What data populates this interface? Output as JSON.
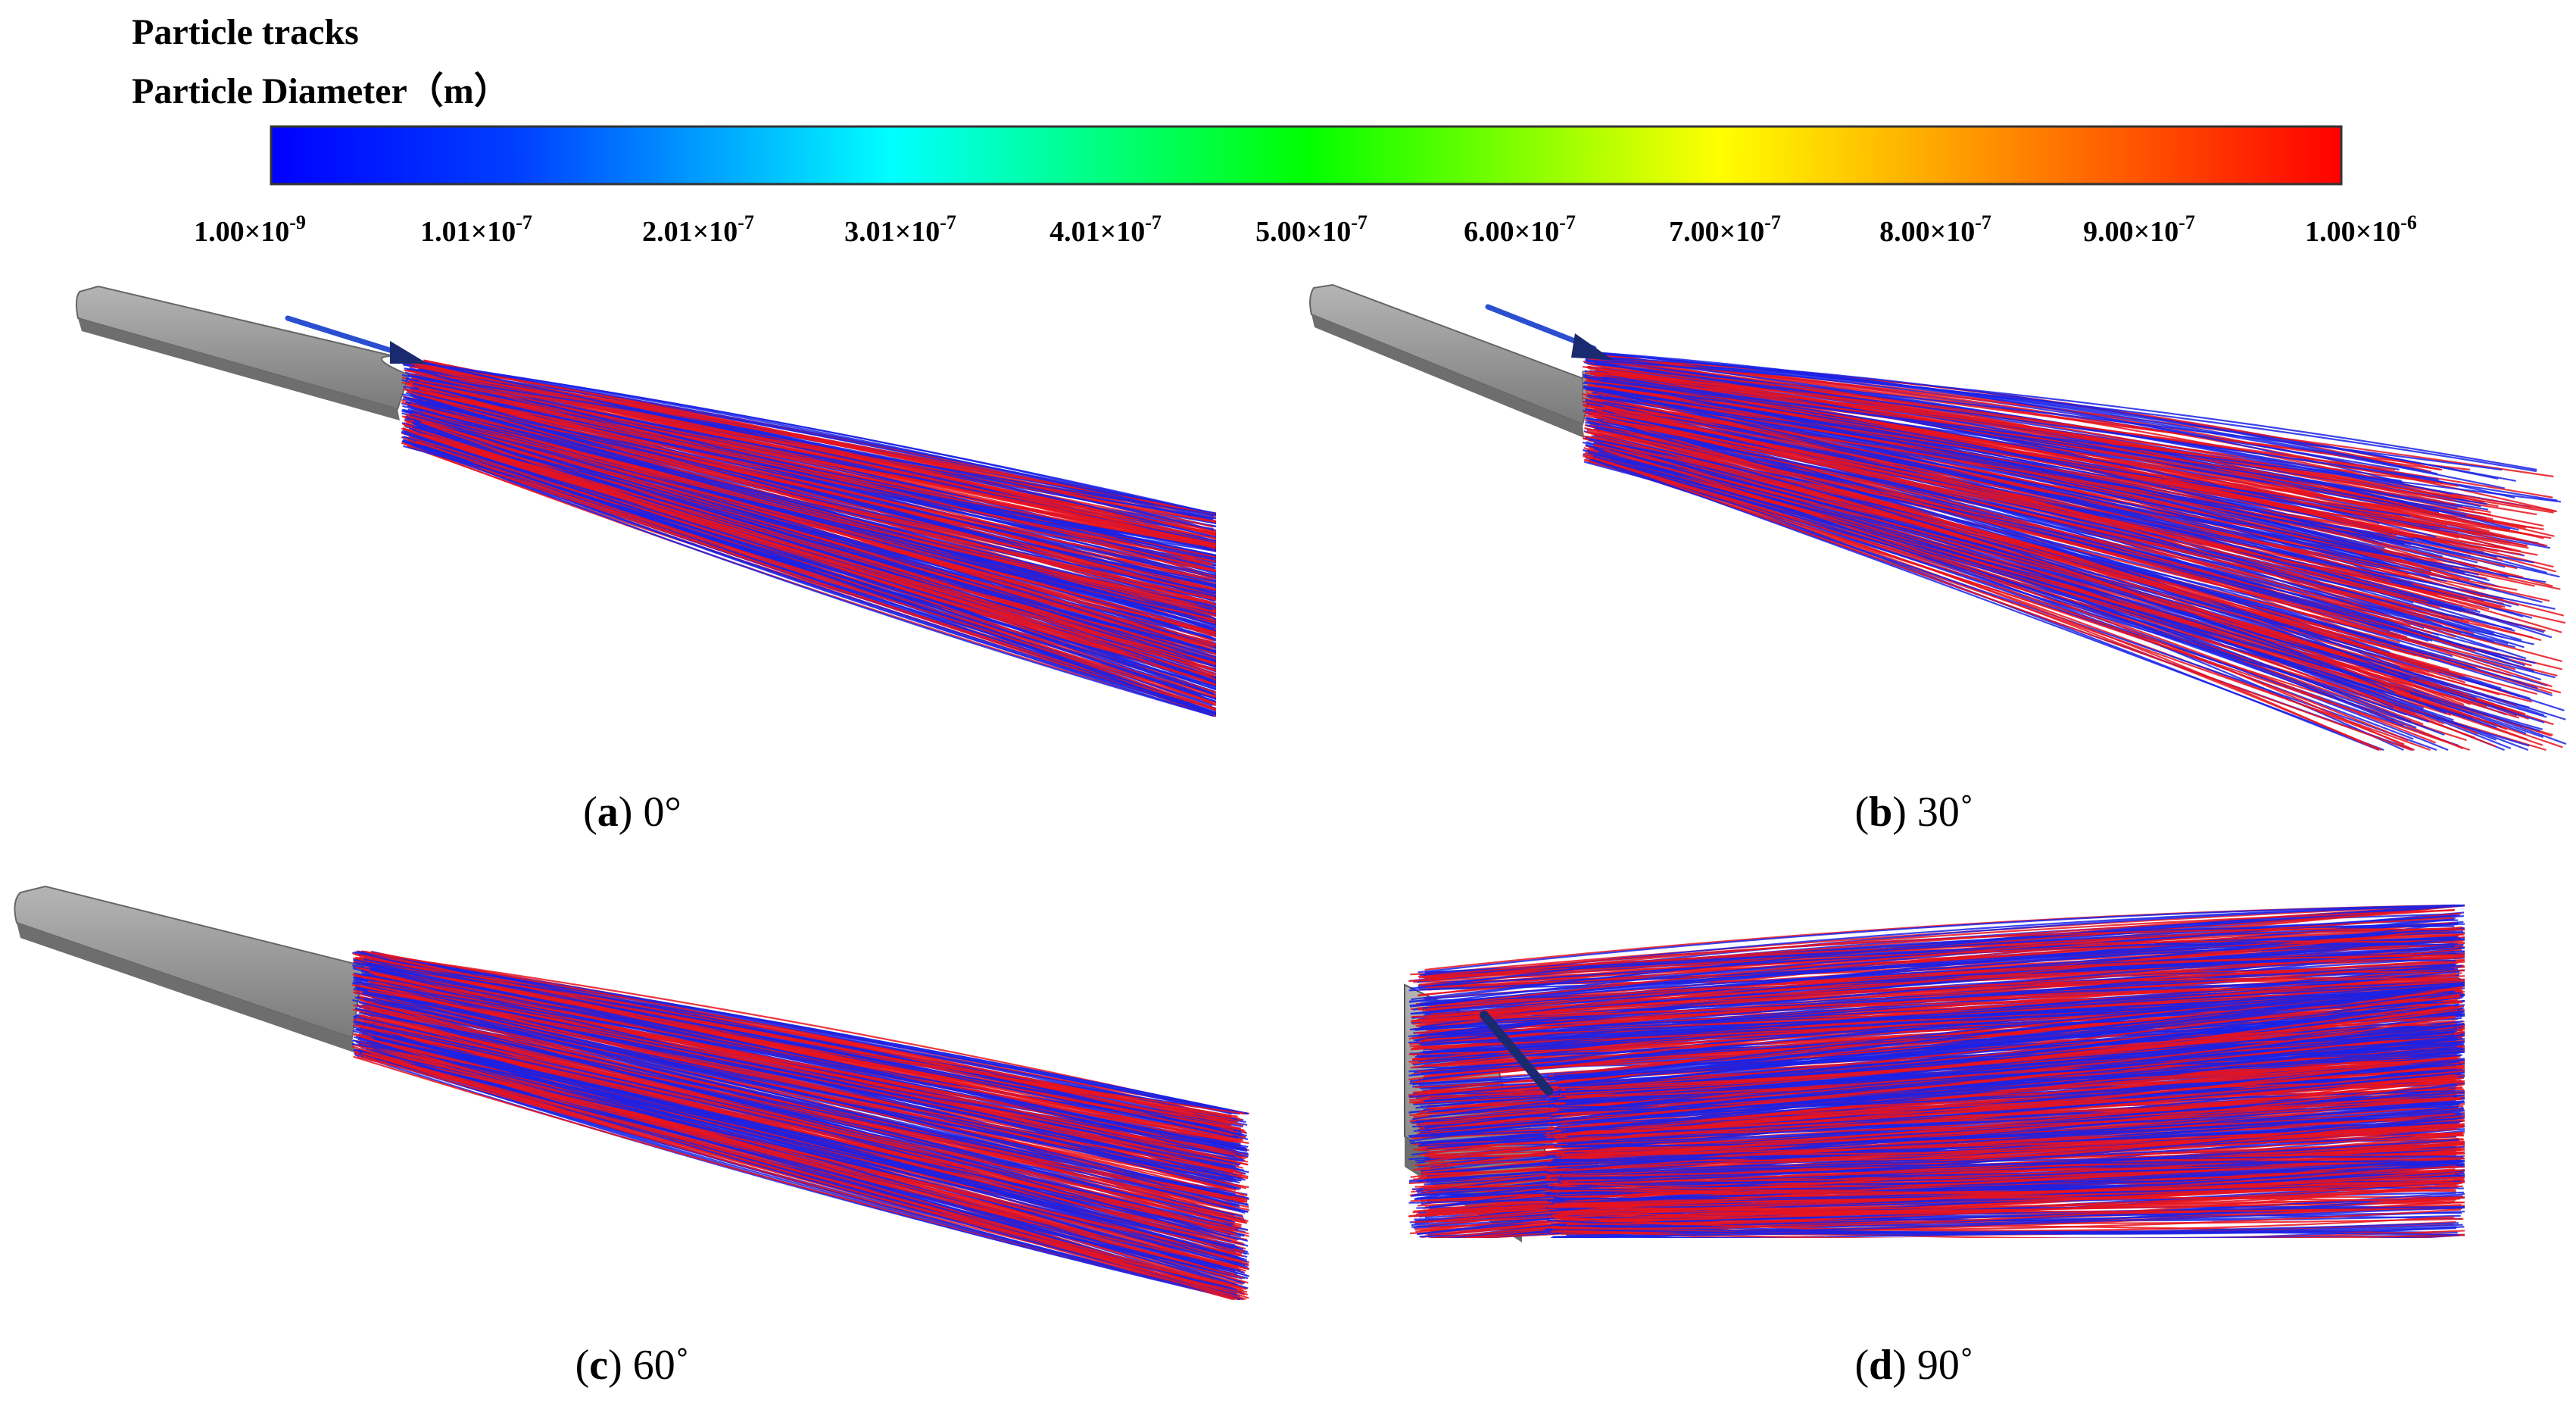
{
  "legend": {
    "title": "Particle tracks",
    "subtitle": "Particle Diameter（m）",
    "ticks": [
      {
        "base": "1.00×10",
        "exp": "-9"
      },
      {
        "base": "1.01×10",
        "exp": "-7"
      },
      {
        "base": "2.01×10",
        "exp": "-7"
      },
      {
        "base": "3.01×10",
        "exp": "-7"
      },
      {
        "base": "4.01×10",
        "exp": "-7"
      },
      {
        "base": "5.00×10",
        "exp": "-7"
      },
      {
        "base": "6.00×10",
        "exp": "-7"
      },
      {
        "base": "7.00×10",
        "exp": "-7"
      },
      {
        "base": "8.00×10",
        "exp": "-7"
      },
      {
        "base": "9.00×10",
        "exp": "-7"
      },
      {
        "base": "1.00×10",
        "exp": "-6"
      }
    ]
  },
  "panels": [
    {
      "caption": [
        "(",
        "a",
        ") 0°"
      ]
    },
    {
      "caption": [
        "(",
        "b",
        ") 30˚"
      ]
    },
    {
      "caption": [
        "(",
        "c",
        ") 60˚"
      ]
    },
    {
      "caption": [
        "(",
        "d",
        ") 90˚"
      ]
    }
  ]
}
